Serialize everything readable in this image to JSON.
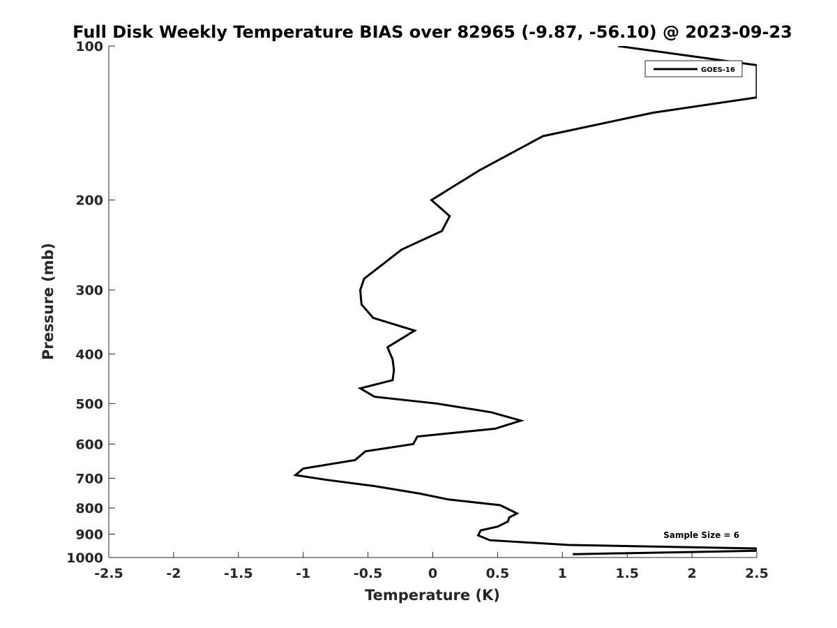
{
  "chart_data": {
    "type": "line",
    "title": "Full Disk Weekly Temperature BIAS over 82965 (-9.87, -56.10) @ 2023-09-23",
    "xlabel": "Temperature (K)",
    "ylabel": "Pressure (mb)",
    "xlim": [
      -2.5,
      2.5
    ],
    "ylim": [
      100,
      1000
    ],
    "y_scale": "log",
    "y_reversed": true,
    "x_ticks": [
      -2.5,
      -2,
      -1.5,
      -1,
      -0.5,
      0,
      0.5,
      1,
      1.5,
      2,
      2.5
    ],
    "x_tick_labels": [
      "-2.5",
      "-2",
      "-1.5",
      "-1",
      "-0.5",
      "0",
      "0.5",
      "1",
      "1.5",
      "2",
      "2.5"
    ],
    "y_ticks": [
      100,
      200,
      300,
      400,
      500,
      600,
      700,
      800,
      900,
      1000
    ],
    "y_tick_labels": [
      "100",
      "200",
      "300",
      "400",
      "500",
      "600",
      "700",
      "800",
      "900",
      "1000"
    ],
    "grid": false,
    "legend_position": "top-right",
    "series": [
      {
        "name": "GOES-16",
        "color": "#000000",
        "points": [
          {
            "x": 1.43,
            "p": 100
          },
          {
            "x": 2.5,
            "p": 109
          },
          {
            "x": 2.5,
            "p": 126
          },
          {
            "x": 1.7,
            "p": 135
          },
          {
            "x": 0.85,
            "p": 150
          },
          {
            "x": 0.36,
            "p": 175
          },
          {
            "x": -0.01,
            "p": 200
          },
          {
            "x": 0.13,
            "p": 215
          },
          {
            "x": 0.07,
            "p": 230
          },
          {
            "x": -0.24,
            "p": 250
          },
          {
            "x": -0.53,
            "p": 285
          },
          {
            "x": -0.56,
            "p": 300
          },
          {
            "x": -0.55,
            "p": 320
          },
          {
            "x": -0.46,
            "p": 340
          },
          {
            "x": -0.14,
            "p": 360
          },
          {
            "x": -0.35,
            "p": 388
          },
          {
            "x": -0.31,
            "p": 410
          },
          {
            "x": -0.3,
            "p": 430
          },
          {
            "x": -0.31,
            "p": 450
          },
          {
            "x": -0.56,
            "p": 467
          },
          {
            "x": -0.45,
            "p": 485
          },
          {
            "x": 0.03,
            "p": 500
          },
          {
            "x": 0.45,
            "p": 520
          },
          {
            "x": 0.68,
            "p": 540
          },
          {
            "x": 0.48,
            "p": 560
          },
          {
            "x": -0.12,
            "p": 580
          },
          {
            "x": -0.15,
            "p": 600
          },
          {
            "x": -0.52,
            "p": 620
          },
          {
            "x": -0.6,
            "p": 645
          },
          {
            "x": -1.0,
            "p": 670
          },
          {
            "x": -1.06,
            "p": 690
          },
          {
            "x": -0.82,
            "p": 705
          },
          {
            "x": -0.45,
            "p": 725
          },
          {
            "x": -0.1,
            "p": 750
          },
          {
            "x": 0.12,
            "p": 770
          },
          {
            "x": 0.52,
            "p": 790
          },
          {
            "x": 0.65,
            "p": 820
          },
          {
            "x": 0.59,
            "p": 835
          },
          {
            "x": 0.58,
            "p": 850
          },
          {
            "x": 0.5,
            "p": 870
          },
          {
            "x": 0.37,
            "p": 885
          },
          {
            "x": 0.35,
            "p": 905
          },
          {
            "x": 0.44,
            "p": 925
          },
          {
            "x": 1.05,
            "p": 945
          },
          {
            "x": 2.5,
            "p": 960
          },
          {
            "x": 2.5,
            "p": 970
          },
          {
            "x": 1.08,
            "p": 985
          }
        ]
      }
    ],
    "annotations": [
      {
        "text": "Sample Size = 6",
        "position": "bottom-right"
      }
    ]
  }
}
